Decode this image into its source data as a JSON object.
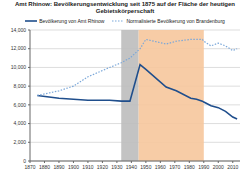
{
  "chart_data": {
    "type": "line",
    "title": "Amt Rhinow: Bevölkerungsentwicklung seit 1875 auf der Fläche der heutigen Gebietskörperschaft",
    "x": [
      1875,
      1890,
      1900,
      1910,
      1925,
      1933,
      1939,
      1946,
      1950,
      1964,
      1971,
      1981,
      1985,
      1989,
      1990,
      1995,
      2000,
      2005,
      2010,
      2013
    ],
    "series": [
      {
        "name": "Bevölkerung von Amt Rhinow",
        "color": "#1f4e8c",
        "line_style": "solid",
        "values": [
          7000,
          6700,
          6600,
          6500,
          6500,
          6400,
          6400,
          10300,
          9800,
          7900,
          7500,
          6700,
          6600,
          6400,
          6300,
          5900,
          5700,
          5300,
          4700,
          4500
        ]
      },
      {
        "name": "Normalisierte Bevölkerung von Brandenburg",
        "color": "#7aa7d9",
        "line_style": "dotted",
        "values": [
          7000,
          7500,
          8000,
          9000,
          10000,
          10500,
          11000,
          12000,
          13000,
          12500,
          12800,
          13000,
          13000,
          13000,
          12800,
          12300,
          12600,
          12300,
          11800,
          12000
        ]
      }
    ],
    "shaded_periods": [
      {
        "from": 1933,
        "to": 1945,
        "color": "#bdbdbd"
      },
      {
        "from": 1945,
        "to": 1990,
        "color": "#f6c79c"
      }
    ],
    "xlim": [
      1870,
      2015
    ],
    "xticks": [
      1870,
      1880,
      1890,
      1900,
      1910,
      1920,
      1930,
      1940,
      1950,
      1960,
      1970,
      1980,
      1990,
      2000,
      2010
    ],
    "ylim": [
      0,
      14000
    ],
    "yticks": [
      0,
      {
        "value": 2000,
        "label": "2,000"
      },
      {
        "value": 4000,
        "label": "4,000"
      },
      {
        "value": 6000,
        "label": "6,000"
      },
      {
        "value": 8000,
        "label": "8,000"
      },
      {
        "value": 10000,
        "label": "10,000"
      },
      {
        "value": 12000,
        "label": "12,000"
      },
      {
        "value": 14000,
        "label": "14,000"
      }
    ],
    "grid": true
  }
}
